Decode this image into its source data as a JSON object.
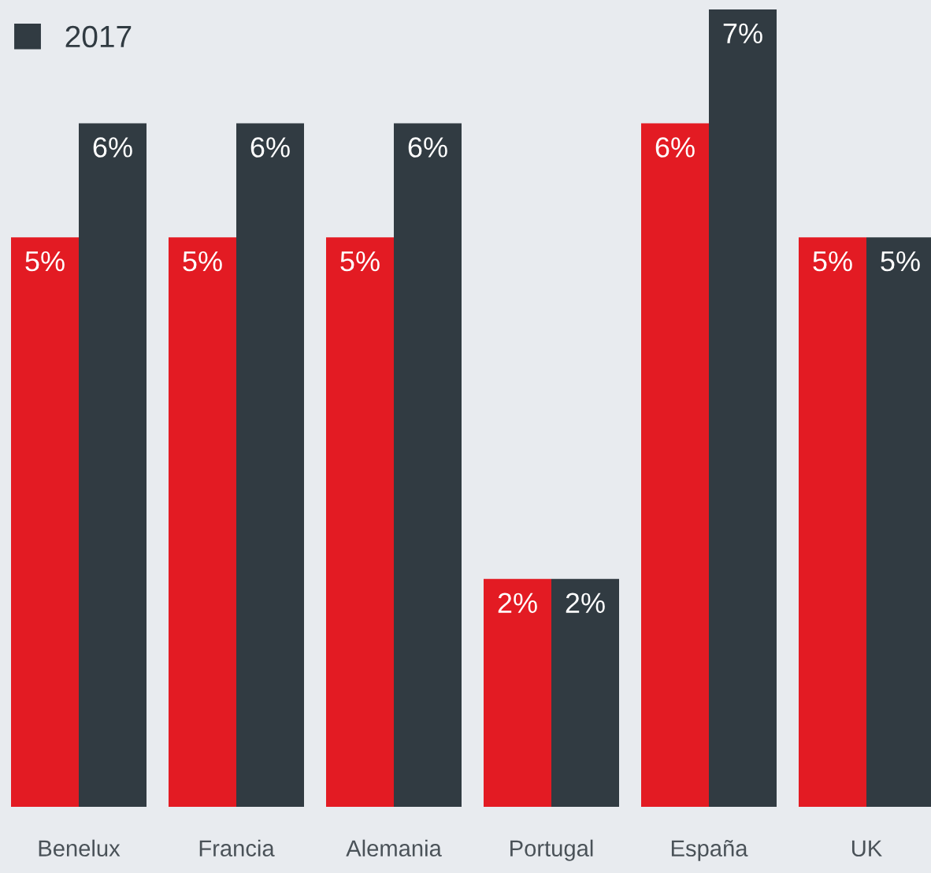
{
  "chart_data": {
    "type": "bar",
    "categories": [
      "Benelux",
      "Francia",
      "Alemania",
      "Portugal",
      "España",
      "UK"
    ],
    "series": [
      {
        "color": "#e31b23",
        "values": [
          5,
          5,
          5,
          2,
          6,
          5
        ],
        "value_labels": [
          "5%",
          "5%",
          "5%",
          "2%",
          "6%",
          "5%"
        ]
      },
      {
        "name": "2017",
        "color": "#313b42",
        "values": [
          6,
          6,
          6,
          2,
          7,
          5
        ],
        "value_labels": [
          "6%",
          "6%",
          "6%",
          "2%",
          "7%",
          "5%"
        ]
      }
    ],
    "legend": "top left",
    "grid": false,
    "tick_labels": "x"
  }
}
